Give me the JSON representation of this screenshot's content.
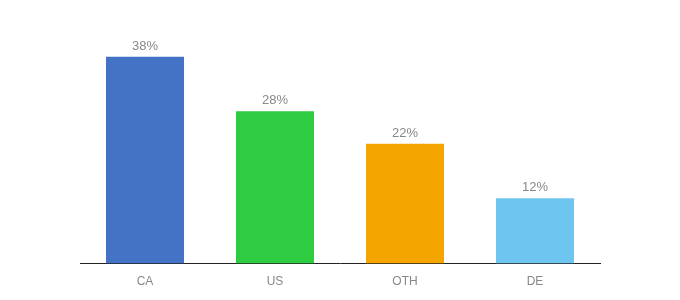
{
  "chart_data": {
    "type": "bar",
    "categories": [
      "CA",
      "US",
      "OTH",
      "DE"
    ],
    "values": [
      38,
      28,
      22,
      12
    ],
    "value_labels": [
      "38%",
      "28%",
      "22%",
      "12%"
    ],
    "colors": [
      "#4472c4",
      "#2ecc40",
      "#f5a500",
      "#6ec6f0"
    ],
    "ylim": [
      0,
      44
    ],
    "grid": false,
    "data_labels": true,
    "tick_labels": "x"
  }
}
